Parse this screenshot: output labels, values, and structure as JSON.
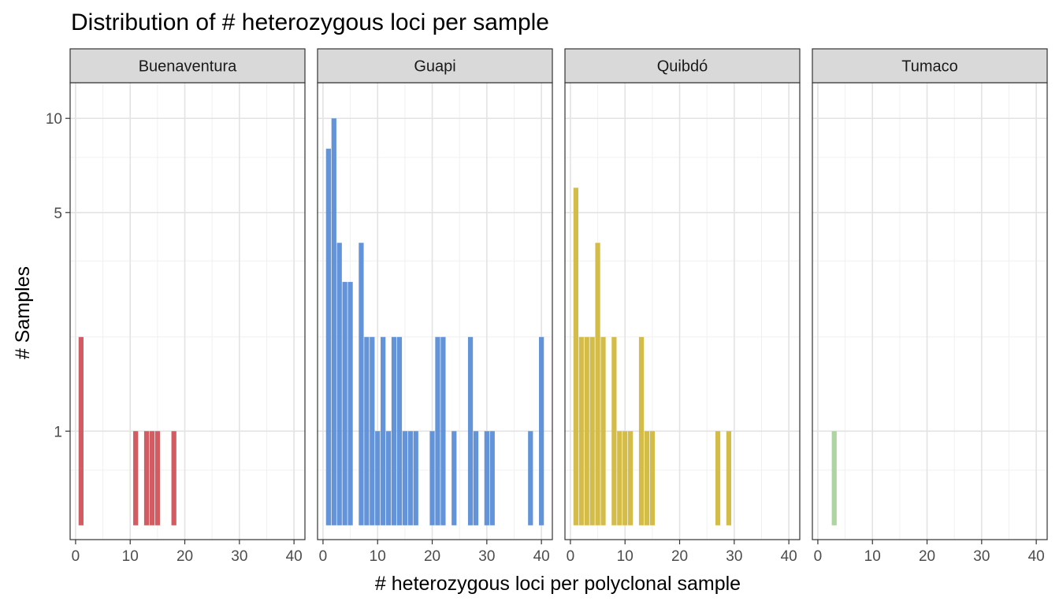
{
  "chart_data": {
    "type": "bar",
    "title": "Distribution of # heterozygous loci per sample",
    "xlabel": "# heterozygous loci per polyclonal sample",
    "ylabel": "# Samples",
    "y_scale": "log10",
    "x_ticks": [
      "0",
      "10",
      "20",
      "30",
      "40"
    ],
    "y_ticks": [
      "1",
      "5",
      "10"
    ],
    "x_tick_values": [
      0,
      10,
      20,
      30,
      40
    ],
    "y_tick_values": [
      1,
      5,
      10
    ],
    "xlim": [
      -1,
      42
    ],
    "ylim": [
      0.45,
      13
    ],
    "bar_base": 0.5,
    "grid": true,
    "panels": [
      {
        "name": "Buenaventura",
        "color": "#D1535A",
        "x": [
          1,
          11,
          13,
          14,
          15,
          18
        ],
        "values": [
          2,
          1,
          1,
          1,
          1,
          1
        ]
      },
      {
        "name": "Guapi",
        "color": "#5B8DD6",
        "x": [
          1,
          2,
          3,
          4,
          5,
          7,
          8,
          9,
          10,
          11,
          12,
          13,
          14,
          15,
          16,
          17,
          20,
          21,
          22,
          24,
          27,
          28,
          30,
          31,
          38,
          40
        ],
        "values": [
          8,
          10,
          4,
          3,
          3,
          4,
          2,
          2,
          1,
          2,
          1,
          2,
          2,
          1,
          1,
          1,
          1,
          2,
          2,
          1,
          2,
          1,
          1,
          1,
          1,
          2
        ]
      },
      {
        "name": "Quibdó",
        "color": "#D2B83F",
        "x": [
          1,
          2,
          3,
          4,
          5,
          6,
          8,
          9,
          10,
          11,
          13,
          14,
          15,
          27,
          29
        ],
        "values": [
          6,
          2,
          2,
          2,
          4,
          2,
          2,
          1,
          1,
          1,
          2,
          1,
          1,
          1,
          1
        ]
      },
      {
        "name": "Tumaco",
        "color": "#A9D29C",
        "x": [
          3
        ],
        "values": [
          1
        ]
      }
    ]
  }
}
